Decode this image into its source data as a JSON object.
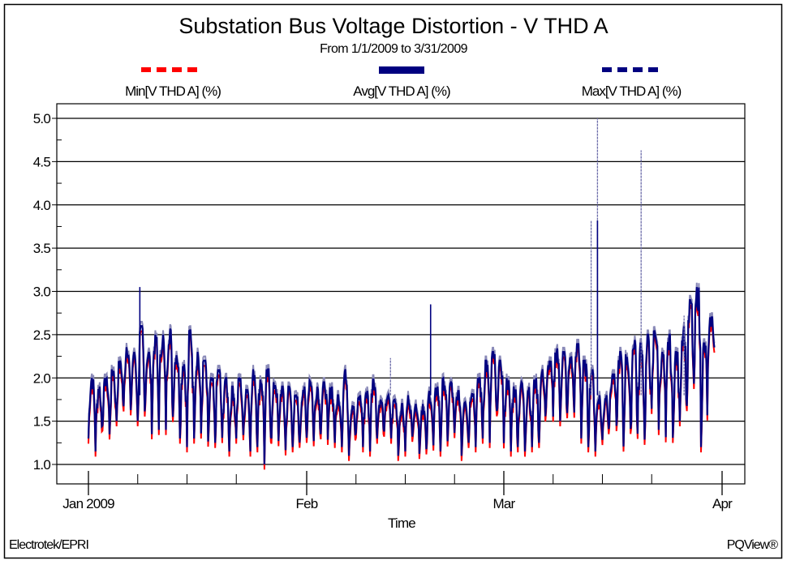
{
  "chart_data": {
    "type": "line",
    "title": "Substation Bus Voltage Distortion - V THD A",
    "subtitle": "From 1/1/2009 to 3/31/2009",
    "xlabel": "Time",
    "ylabel": "",
    "ylim": [
      0.77,
      5.17
    ],
    "xlim_days": [
      -4.5,
      93
    ],
    "yticks": [
      "1.0",
      "1.5",
      "2.0",
      "2.5",
      "3.0",
      "3.5",
      "4.0",
      "4.5",
      "5.0"
    ],
    "ytick_values": [
      1.0,
      1.5,
      2.0,
      2.5,
      3.0,
      3.5,
      4.0,
      4.5,
      5.0
    ],
    "xticks": [
      {
        "label": "Jan 2009",
        "day": 0
      },
      {
        "label": "Feb",
        "day": 31
      },
      {
        "label": "Mar",
        "day": 59
      },
      {
        "label": "Apr",
        "day": 90
      }
    ],
    "minor_xtick_days": [
      7,
      14,
      21,
      38,
      45,
      52,
      66,
      73,
      80
    ],
    "grid": "horizontal",
    "legend": {
      "placement": "top",
      "entries": [
        {
          "label": "Min[V THD A] (%)",
          "color": "#ff0000",
          "style": "dashed"
        },
        {
          "label": "Avg[V THD A] (%)",
          "color": "#000080",
          "style": "solid"
        },
        {
          "label": "Max[V THD A] (%)",
          "color": "#000080",
          "style": "dashed"
        }
      ]
    },
    "start_date": "2009-01-01",
    "avg_daily_high": [
      2.0,
      1.9,
      2.0,
      2.1,
      2.2,
      2.4,
      2.3,
      2.6,
      2.3,
      2.5,
      2.5,
      2.6,
      2.3,
      2.2,
      2.55,
      2.3,
      2.2,
      2.0,
      2.1,
      2.0,
      1.9,
      2.0,
      1.9,
      2.1,
      2.0,
      2.1,
      1.95,
      1.9,
      1.9,
      1.8,
      1.9,
      2.0,
      1.9,
      1.95,
      1.9,
      1.8,
      2.1,
      1.7,
      1.8,
      1.85,
      2.05,
      1.75,
      1.8,
      1.75,
      1.7,
      1.8,
      1.7,
      1.7,
      1.85,
      1.9,
      2.0,
      1.95,
      1.85,
      1.8,
      1.9,
      2.0,
      2.2,
      2.3,
      2.2,
      2.0,
      1.9,
      1.95,
      1.9,
      2.0,
      2.1,
      2.2,
      2.35,
      2.3,
      2.25,
      2.4,
      2.2,
      2.1,
      1.8,
      1.8,
      2.05,
      2.3,
      2.3,
      2.5,
      2.4,
      2.5,
      2.6,
      2.3,
      2.5,
      2.3,
      2.6,
      2.9,
      3.05,
      2.4,
      2.7
    ],
    "avg_daily_low": [
      1.3,
      1.15,
      1.45,
      1.3,
      1.5,
      1.6,
      1.5,
      1.4,
      1.6,
      1.35,
      1.4,
      1.4,
      1.55,
      1.3,
      1.2,
      1.3,
      1.35,
      1.15,
      1.25,
      1.2,
      1.15,
      1.3,
      1.25,
      1.15,
      1.2,
      1.0,
      1.3,
      1.2,
      1.15,
      1.2,
      1.15,
      1.3,
      1.25,
      1.35,
      1.2,
      1.25,
      1.2,
      1.1,
      1.3,
      1.2,
      1.15,
      1.3,
      1.3,
      1.3,
      1.1,
      1.15,
      1.3,
      1.1,
      1.05,
      1.2,
      1.15,
      1.2,
      1.3,
      1.1,
      1.25,
      1.2,
      1.3,
      1.25,
      1.5,
      1.2,
      1.15,
      1.2,
      1.15,
      1.2,
      1.25,
      1.6,
      1.5,
      1.5,
      1.5,
      1.6,
      1.3,
      1.2,
      1.15,
      1.25,
      1.5,
      1.3,
      1.2,
      1.2,
      1.3,
      1.2,
      1.5,
      1.4,
      1.15,
      1.25,
      1.5,
      1.6,
      1.7,
      1.2,
      2.1
    ],
    "min_below_avg": 0.06,
    "max_above_avg": 0.05,
    "spikes": [
      {
        "series": "Avg",
        "day": 7.3,
        "value": 3.05
      },
      {
        "series": "Max",
        "day": 42.9,
        "value": 2.23
      },
      {
        "series": "Avg",
        "day": 48.6,
        "value": 2.85
      },
      {
        "series": "Max",
        "day": 71.4,
        "value": 3.82
      },
      {
        "series": "Max",
        "day": 72.3,
        "value": 5.0
      },
      {
        "series": "Avg",
        "day": 72.3,
        "value": 3.82
      },
      {
        "series": "Max",
        "day": 78.5,
        "value": 4.63
      },
      {
        "series": "Max",
        "day": 84.6,
        "value": 2.72
      }
    ]
  },
  "footer": {
    "left": "Electrotek/EPRI",
    "right": "PQView®"
  }
}
